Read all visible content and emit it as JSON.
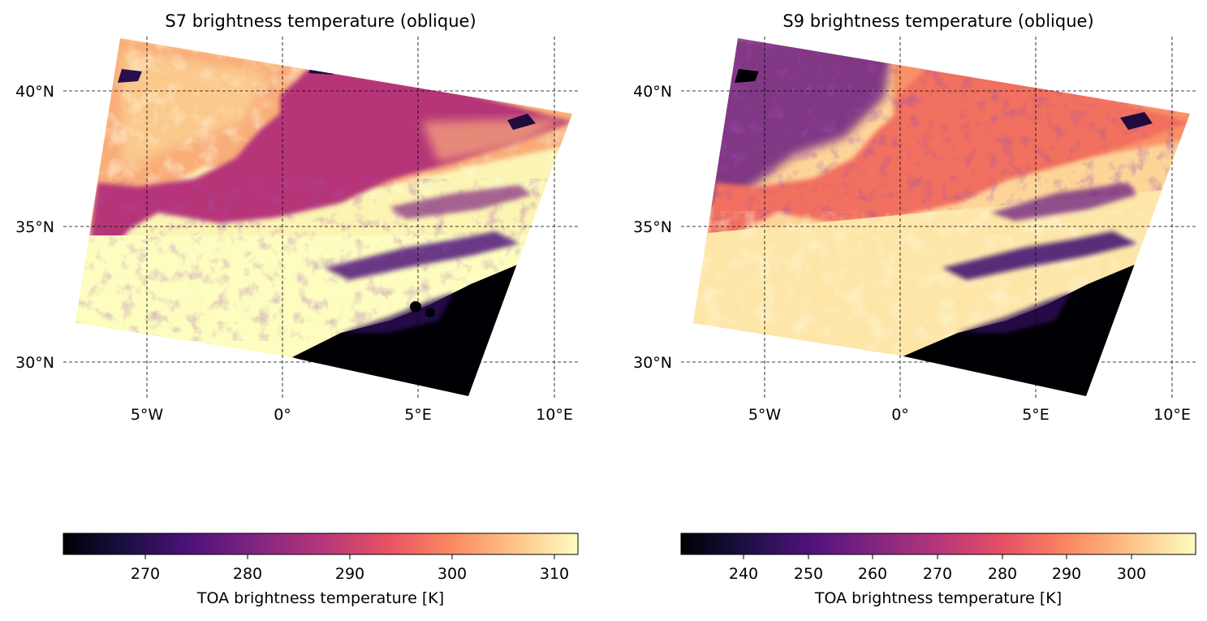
{
  "panels": [
    {
      "id": "s7",
      "title": "S7 brightness temperature (oblique)",
      "lon_labels": [
        "5°W",
        "0°",
        "5°E",
        "10°E"
      ],
      "lat_labels": [
        "40°N",
        "35°N",
        "30°N"
      ],
      "colorbar": {
        "label": "TOA brightness temperature [K]",
        "ticks": [
          "270",
          "280",
          "290",
          "300",
          "310"
        ]
      }
    },
    {
      "id": "s9",
      "title": "S9 brightness temperature (oblique)",
      "lon_labels": [
        "5°W",
        "0°",
        "5°E",
        "10°E"
      ],
      "lat_labels": [
        "40°N",
        "35°N",
        "30°N"
      ],
      "colorbar": {
        "label": "TOA brightness temperature [K]",
        "ticks": [
          "240",
          "250",
          "260",
          "270",
          "280",
          "290",
          "300"
        ]
      }
    }
  ],
  "colormap": "magma",
  "colors": {
    "cold": "#000004",
    "sea_s7": "#b63679",
    "sea_s9": "#f1605d",
    "hot": "#fcfdbf",
    "grid": "#000000"
  }
}
